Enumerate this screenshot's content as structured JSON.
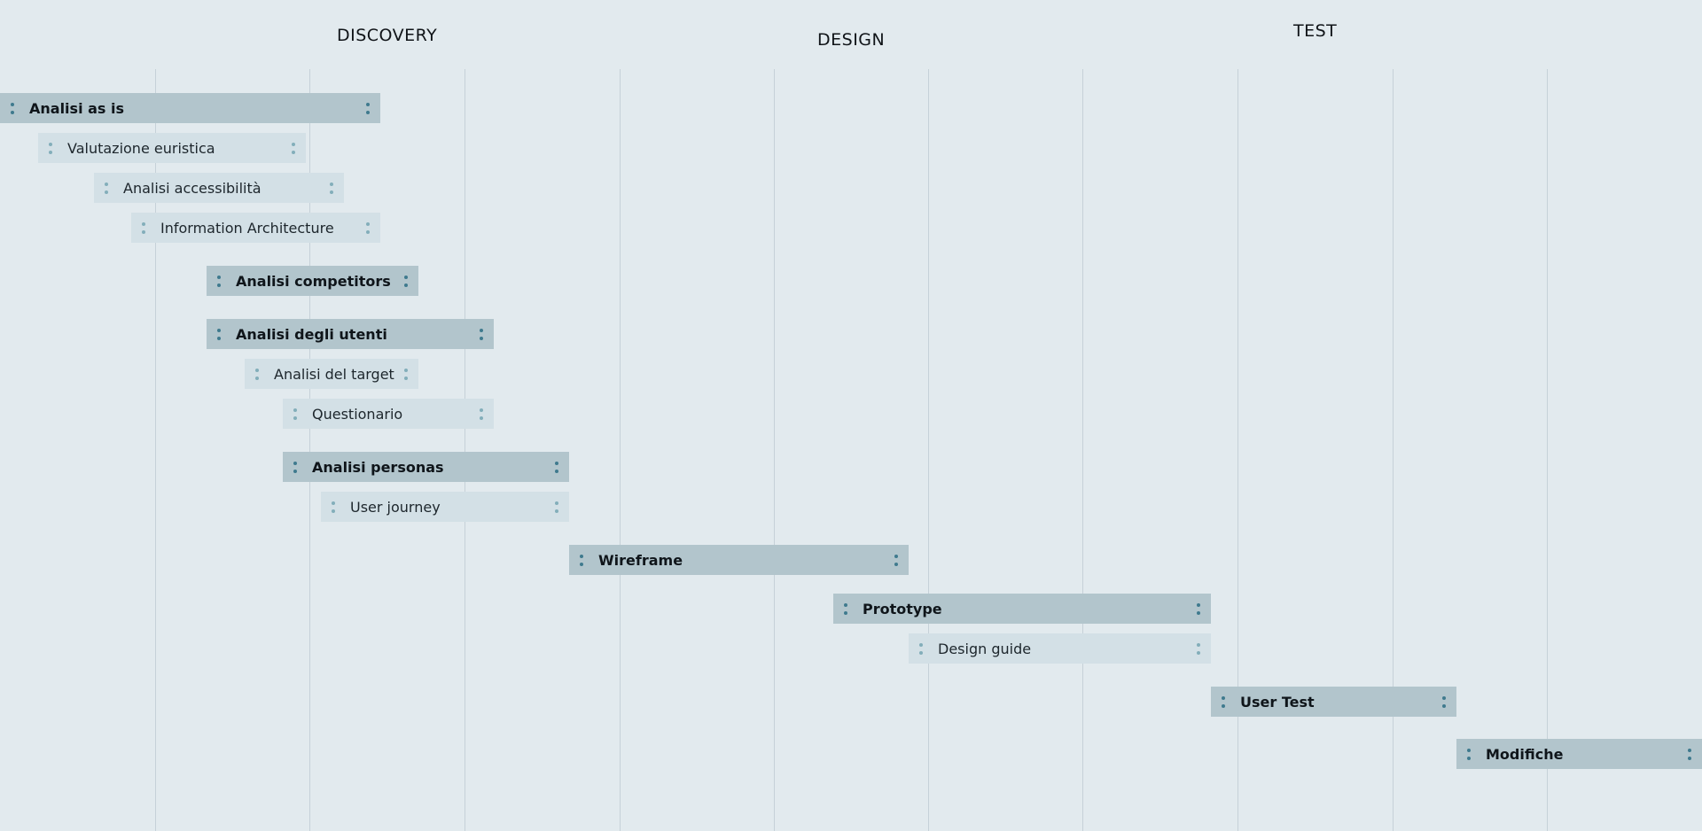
{
  "colors": {
    "background": "#e2eaee",
    "main_bar": "#b2c5cc",
    "sub_bar": "#d3e0e6",
    "gridline": "#c6d1d8",
    "main_handle": "#3f7a8e",
    "sub_handle": "#83aeba"
  },
  "phases": [
    "DISCOVERY",
    "DESIGN",
    "TEST"
  ],
  "tasks": [
    {
      "label": "Analisi as is",
      "level": "main"
    },
    {
      "label": "Valutazione euristica",
      "level": "sub"
    },
    {
      "label": "Analisi accessibilità",
      "level": "sub"
    },
    {
      "label": "Information Architecture",
      "level": "sub"
    },
    {
      "label": "Analisi competitors",
      "level": "main"
    },
    {
      "label": "Analisi degli utenti",
      "level": "main"
    },
    {
      "label": "Analisi del target",
      "level": "sub"
    },
    {
      "label": "Questionario",
      "level": "sub"
    },
    {
      "label": "Analisi personas",
      "level": "main"
    },
    {
      "label": "User journey",
      "level": "sub"
    },
    {
      "label": "Wireframe",
      "level": "main"
    },
    {
      "label": "Prototype",
      "level": "main"
    },
    {
      "label": "Design guide",
      "level": "sub"
    },
    {
      "label": "User Test",
      "level": "main"
    },
    {
      "label": "Modifiche",
      "level": "main"
    }
  ],
  "handle_icon": "drag-handle-icon"
}
